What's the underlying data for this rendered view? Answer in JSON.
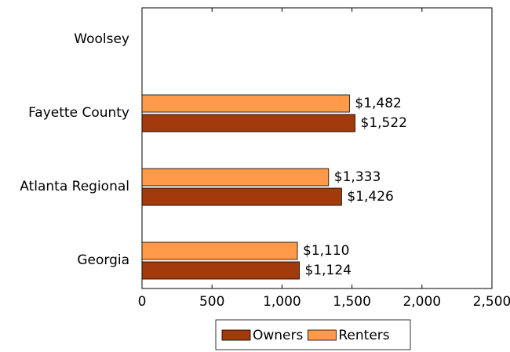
{
  "chart_data": {
    "type": "bar",
    "orientation": "horizontal",
    "categories": [
      "Woolsey",
      "Fayette County",
      "Atlanta Regional",
      "Georgia"
    ],
    "series": [
      {
        "name": "Owners",
        "color": "#a33a0c",
        "values": [
          null,
          1522,
          1426,
          1124
        ],
        "value_labels": [
          null,
          "$1,522",
          "$1,426",
          "$1,124"
        ]
      },
      {
        "name": "Renters",
        "color": "#ff9a4a",
        "values": [
          null,
          1482,
          1333,
          1110
        ],
        "value_labels": [
          null,
          "$1,482",
          "$1,333",
          "$1,110"
        ]
      }
    ],
    "xlim": [
      0,
      2500
    ],
    "xticks": [
      0,
      500,
      {
        "value": 1000,
        "label": "1,000"
      },
      {
        "value": 1500,
        "label": "1,500"
      },
      {
        "value": 2000,
        "label": "2,000"
      },
      {
        "value": 2500,
        "label": "2,500"
      }
    ],
    "legend": "bottom"
  }
}
